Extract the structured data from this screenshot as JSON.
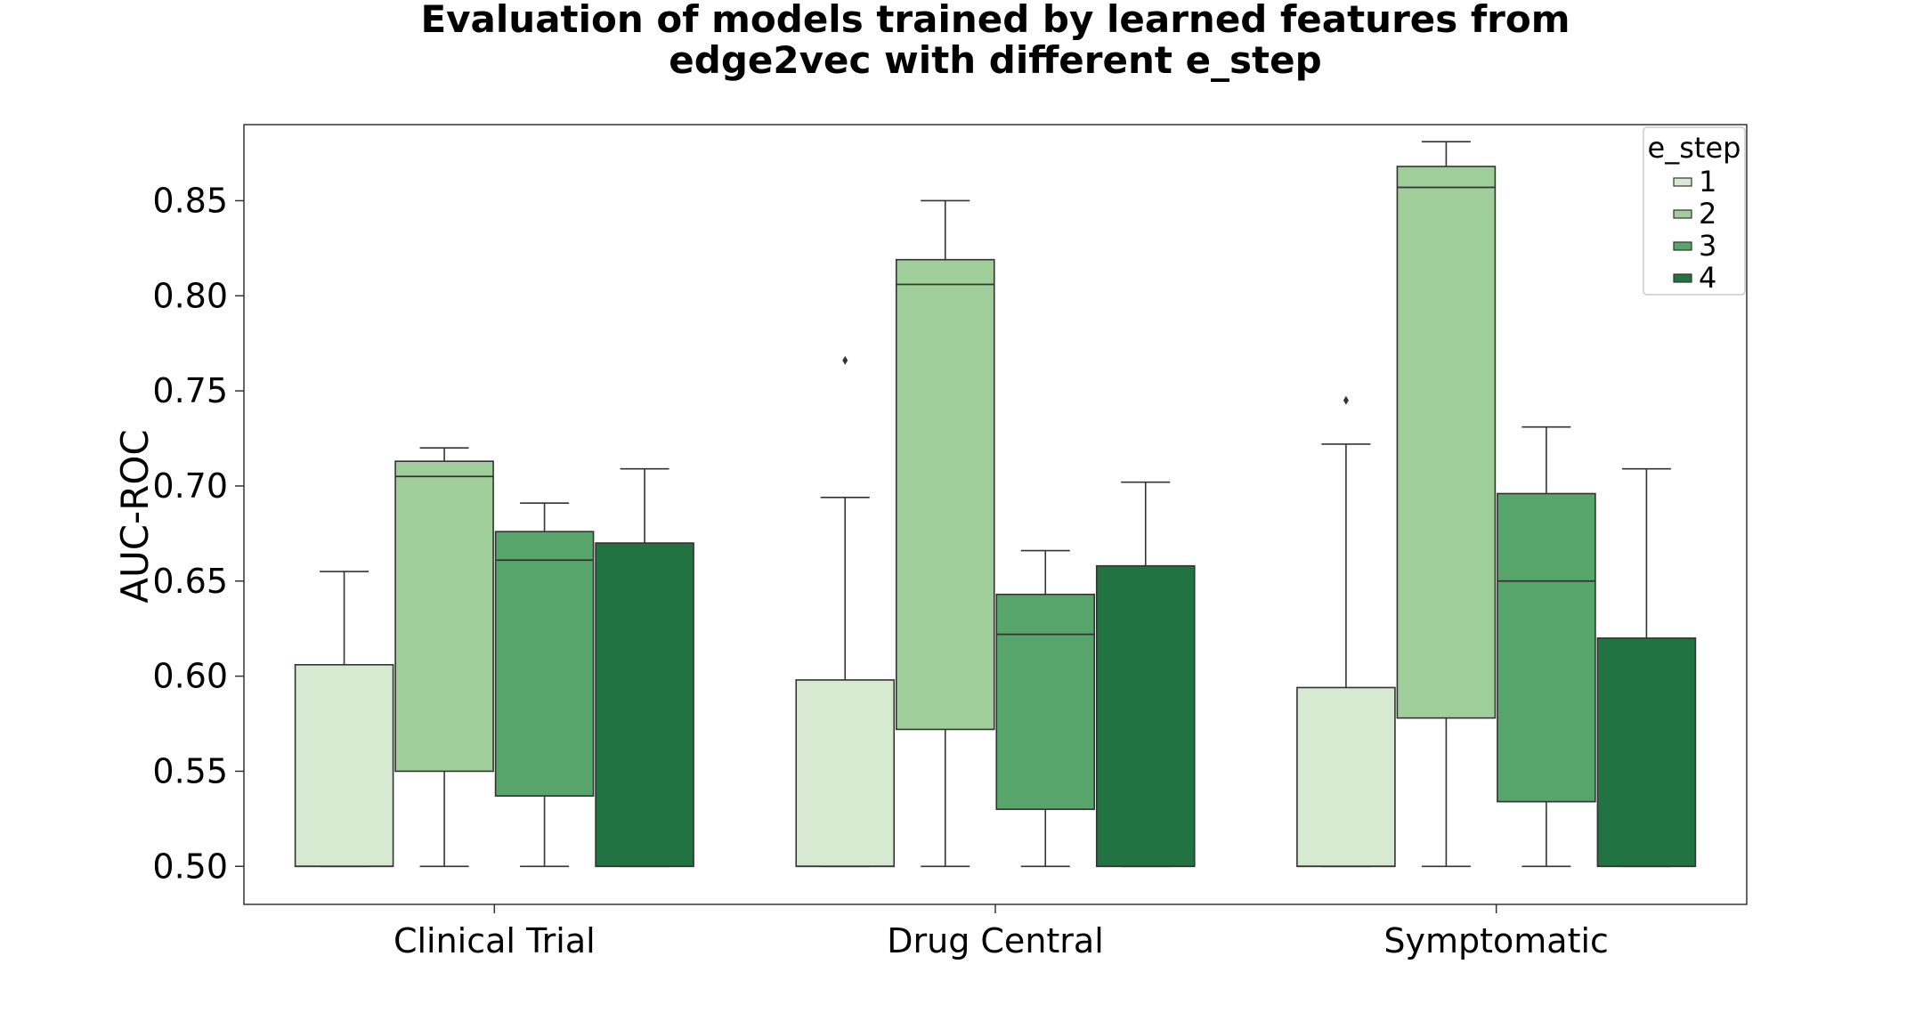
{
  "chart_data": {
    "type": "box",
    "title_lines": [
      "Evaluation of models trained by learned features from",
      "edge2vec with different e_step"
    ],
    "xlabel": "",
    "ylabel": "AUC-ROC",
    "ylim": [
      0.48,
      0.89
    ],
    "yticks": [
      "0.50",
      "0.55",
      "0.60",
      "0.65",
      "0.70",
      "0.75",
      "0.80",
      "0.85"
    ],
    "grid": false,
    "categories": [
      "Clinical Trial",
      "Drug Central",
      "Symptomatic"
    ],
    "legend": {
      "title": "e_step",
      "placement": "top-right"
    },
    "series": [
      {
        "name": "1",
        "color": "#d6ead2",
        "boxes": [
          {
            "whislo": 0.5,
            "q1": 0.5,
            "med": 0.5,
            "q3": 0.606,
            "whishi": 0.655,
            "fliers": []
          },
          {
            "whislo": 0.5,
            "q1": 0.5,
            "med": 0.5,
            "q3": 0.598,
            "whishi": 0.694,
            "fliers": [
              0.766
            ]
          },
          {
            "whislo": 0.5,
            "q1": 0.5,
            "med": 0.5,
            "q3": 0.594,
            "whishi": 0.722,
            "fliers": [
              0.745
            ]
          }
        ]
      },
      {
        "name": "2",
        "color": "#a0ce9a",
        "boxes": [
          {
            "whislo": 0.5,
            "q1": 0.55,
            "med": 0.705,
            "q3": 0.713,
            "whishi": 0.72,
            "fliers": []
          },
          {
            "whislo": 0.5,
            "q1": 0.572,
            "med": 0.806,
            "q3": 0.819,
            "whishi": 0.85,
            "fliers": []
          },
          {
            "whislo": 0.5,
            "q1": 0.578,
            "med": 0.857,
            "q3": 0.868,
            "whishi": 0.881,
            "fliers": []
          }
        ]
      },
      {
        "name": "3",
        "color": "#57a56a",
        "boxes": [
          {
            "whislo": 0.5,
            "q1": 0.537,
            "med": 0.661,
            "q3": 0.676,
            "whishi": 0.691,
            "fliers": []
          },
          {
            "whislo": 0.5,
            "q1": 0.53,
            "med": 0.622,
            "q3": 0.643,
            "whishi": 0.666,
            "fliers": []
          },
          {
            "whislo": 0.5,
            "q1": 0.534,
            "med": 0.65,
            "q3": 0.696,
            "whishi": 0.731,
            "fliers": []
          }
        ]
      },
      {
        "name": "4",
        "color": "#217442",
        "boxes": [
          {
            "whislo": 0.5,
            "q1": 0.5,
            "med": 0.5,
            "q3": 0.67,
            "whishi": 0.709,
            "fliers": []
          },
          {
            "whislo": 0.5,
            "q1": 0.5,
            "med": 0.5,
            "q3": 0.658,
            "whishi": 0.702,
            "fliers": []
          },
          {
            "whislo": 0.5,
            "q1": 0.5,
            "med": 0.5,
            "q3": 0.62,
            "whishi": 0.709,
            "fliers": []
          }
        ]
      }
    ]
  }
}
